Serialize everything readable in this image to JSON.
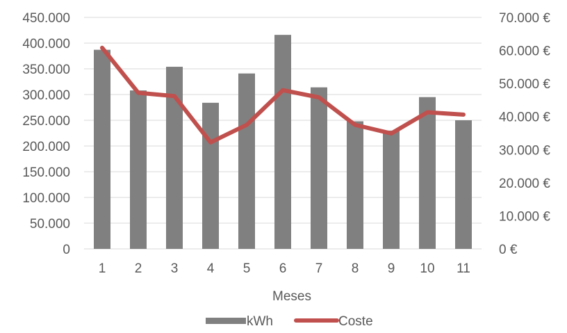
{
  "chart_data": {
    "type": "bar",
    "categories": [
      "1",
      "2",
      "3",
      "4",
      "5",
      "6",
      "7",
      "8",
      "9",
      "10",
      "11"
    ],
    "xlabel": "Meses",
    "ylabel": "",
    "ylim": [
      0,
      450000
    ],
    "y2lim": [
      0,
      70000
    ],
    "y_ticks": [
      "0",
      "50.000",
      "100.000",
      "150.000",
      "200.000",
      "250.000",
      "300.000",
      "350.000",
      "400.000",
      "450.000"
    ],
    "y2_ticks": [
      "0 €",
      "10.000 €",
      "20.000 €",
      "30.000 €",
      "40.000 €",
      "50.000 €",
      "60.000 €",
      "70.000 €"
    ],
    "grid": true,
    "legend_position": "bottom",
    "series": [
      {
        "name": "kWh",
        "type": "bar",
        "axis": "left",
        "color": "#808080",
        "values": [
          387000,
          308000,
          354000,
          284000,
          341000,
          416000,
          314000,
          248000,
          230000,
          295000,
          250000
        ]
      },
      {
        "name": "Coste",
        "type": "line",
        "axis": "right",
        "color": "#C0504D",
        "values": [
          60800,
          47200,
          46200,
          32200,
          37500,
          48000,
          45800,
          37500,
          34900,
          41300,
          40600
        ]
      }
    ]
  }
}
